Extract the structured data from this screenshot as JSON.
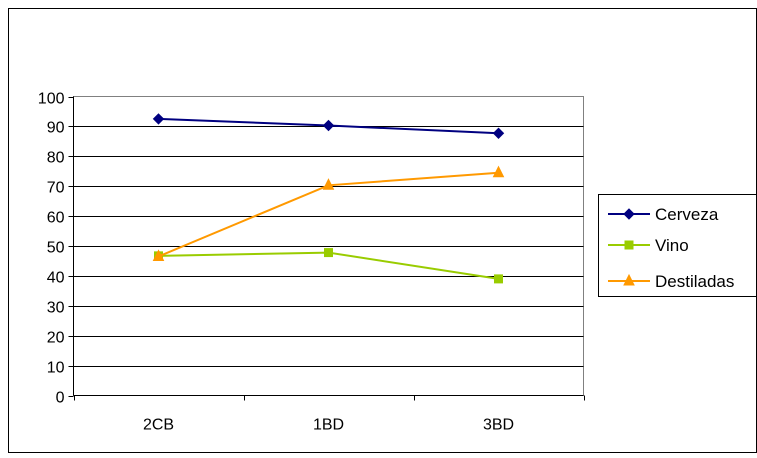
{
  "chart_data": {
    "type": "line",
    "title": "",
    "xlabel": "",
    "ylabel": "",
    "categories": [
      "2CB",
      "1BD",
      "3BD"
    ],
    "ylim": [
      0,
      100
    ],
    "yticks": [
      "0",
      "10",
      "20",
      "30",
      "40",
      "50",
      "60",
      "70",
      "80",
      "90",
      "100"
    ],
    "grid": "horizontal",
    "legend_position": "right",
    "series": [
      {
        "name": "Cerveza",
        "values": [
          92.5,
          90.3,
          87.7
        ],
        "color": "#000080",
        "marker": "diamond"
      },
      {
        "name": "Vino",
        "values": [
          46.7,
          47.8,
          39.0
        ],
        "color": "#99CC00",
        "marker": "square"
      },
      {
        "name": "Destiladas",
        "values": [
          46.5,
          70.3,
          74.5
        ],
        "color": "#FF9900",
        "marker": "triangle"
      }
    ]
  }
}
